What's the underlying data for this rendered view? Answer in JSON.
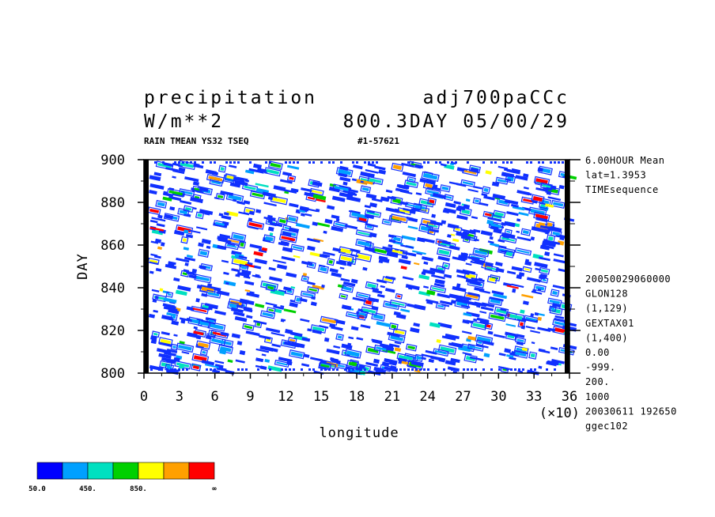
{
  "header": {
    "title_left": "precipitation",
    "title_right": "adj700paCCc",
    "units": "W/m**2",
    "time_label": "800.3DAY 05/00/29",
    "subtitle_left": "RAIN TMEAN YS32 TSEQ",
    "subtitle_right": "#1-57621"
  },
  "info_top": [
    "6.00HOUR Mean",
    "lat=1.3953",
    "TIMEsequence"
  ],
  "info_bottom": [
    "20050029060000",
    "GLON128",
    "(1,129)",
    "GEXTAX01",
    "(1,400)",
    "0.00",
    "-999.",
    "200.",
    "1000",
    "20030611 192650",
    "ggec102"
  ],
  "chart_data": {
    "type": "heatmap",
    "xlabel": "longitude",
    "ylabel": "DAY",
    "x_multiplier_label": "(×10)",
    "xlim": [
      0,
      36
    ],
    "ylim": [
      800,
      900
    ],
    "x_ticks": [
      "0",
      "3",
      "6",
      "9",
      "12",
      "15",
      "18",
      "21",
      "24",
      "27",
      "30",
      "33",
      "36"
    ],
    "y_ticks": [
      "800",
      "820",
      "840",
      "860",
      "880",
      "900"
    ],
    "colorbar": {
      "colors": [
        "#0000ff",
        "#00a0ff",
        "#00e0c0",
        "#00d000",
        "#ffff00",
        "#ffa000",
        "#ff0000"
      ],
      "labels": [
        "50.0",
        "450.",
        "850.",
        "∞"
      ]
    },
    "feature_colors": [
      "#1030ff",
      "#00a0ff",
      "#00e0c0",
      "#00d000",
      "#ffff00",
      "#ffa000",
      "#ff0000"
    ]
  }
}
